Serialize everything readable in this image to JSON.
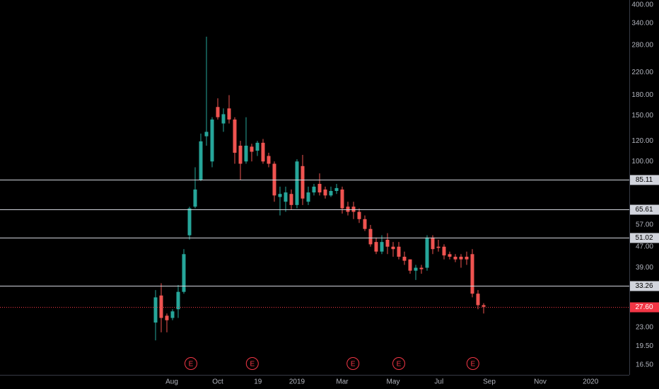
{
  "chart_data": {
    "type": "candlestick",
    "log_scale": true,
    "up_color": "#26a69a",
    "down_color": "#ef5350",
    "categories": [
      null,
      null,
      null,
      null,
      null,
      null,
      null,
      null,
      null,
      null,
      null,
      null,
      null,
      null,
      null,
      null,
      null,
      null,
      null,
      null,
      null,
      null,
      null,
      null,
      null,
      null,
      null,
      null,
      null,
      null,
      null,
      null,
      null,
      null,
      null,
      null,
      null,
      null,
      null,
      null,
      null,
      null,
      null,
      null,
      null,
      null,
      null,
      null,
      null,
      null,
      null,
      null,
      null,
      null,
      null,
      null,
      null,
      null,
      null
    ],
    "open": [
      24,
      30.5,
      25.5,
      25,
      27,
      31.5,
      52,
      67,
      85,
      125,
      100,
      162,
      140,
      160,
      145,
      115,
      100,
      114,
      110,
      118,
      105,
      98,
      73,
      70,
      75,
      68,
      96,
      70,
      76,
      82,
      78,
      74,
      77,
      78,
      67,
      67,
      64,
      60,
      55,
      49,
      45,
      50,
      47,
      47,
      43,
      42,
      38,
      39,
      39,
      51,
      47,
      47,
      44,
      43,
      43,
      43,
      44,
      31,
      28
    ],
    "high": [
      32,
      34,
      26,
      27,
      33.5,
      46,
      67,
      95,
      128,
      302,
      148,
      175,
      160,
      180,
      148,
      120,
      148,
      117,
      120,
      122,
      108,
      100,
      80,
      80,
      78,
      102,
      106,
      80,
      82,
      90,
      80,
      80,
      82,
      80,
      70,
      70,
      66,
      62,
      57,
      51,
      52,
      53,
      49,
      49,
      45,
      42,
      40,
      40,
      52,
      52,
      50,
      48,
      45,
      44,
      44,
      45,
      46,
      32,
      28.5
    ],
    "low": [
      20.5,
      22,
      22,
      24.5,
      25,
      31,
      50,
      66,
      84,
      115,
      95,
      145,
      130,
      140,
      98,
      85,
      98,
      100,
      105,
      98,
      95,
      70,
      62,
      64,
      65,
      66,
      68,
      68,
      74,
      74,
      72,
      73,
      75,
      63,
      62,
      60,
      58,
      54,
      47,
      44,
      44,
      44,
      43,
      42,
      40,
      37,
      35,
      37,
      38,
      44,
      45,
      42,
      42,
      41,
      39,
      40,
      30,
      27,
      26
    ],
    "close": [
      30,
      25,
      24.5,
      26.5,
      31.5,
      44,
      66,
      78,
      119.5,
      130,
      145,
      148,
      152,
      145,
      108,
      98,
      115,
      109,
      118,
      100,
      98,
      74,
      75,
      76,
      68,
      100,
      72,
      76,
      80,
      76,
      74,
      77,
      79,
      66,
      64,
      64,
      60,
      55,
      48,
      45,
      49,
      47,
      46,
      43,
      41.5,
      38,
      39,
      38.5,
      51,
      46,
      46.5,
      43.5,
      43,
      42,
      42,
      42,
      31,
      28,
      27.6
    ],
    "ylim": [
      15.1,
      418
    ],
    "yticks": [
      {
        "value": 400,
        "label": "400.00"
      },
      {
        "value": 340,
        "label": "340.00"
      },
      {
        "value": 280,
        "label": "280.00"
      },
      {
        "value": 220,
        "label": "220.00"
      },
      {
        "value": 180,
        "label": "180.00"
      },
      {
        "value": 150,
        "label": "150.00"
      },
      {
        "value": 120,
        "label": "120.00"
      },
      {
        "value": 100,
        "label": "100.00"
      },
      {
        "value": 57,
        "label": "57.00"
      },
      {
        "value": 47,
        "label": "47.00"
      },
      {
        "value": 39,
        "label": "39.00"
      },
      {
        "value": 23,
        "label": "23.00"
      },
      {
        "value": 19.5,
        "label": "19.50"
      },
      {
        "value": 16.5,
        "label": "16.50"
      }
    ],
    "xlim": [
      -27.5,
      83.75
    ],
    "xticks": [
      {
        "value": 2.875,
        "label": "Aug"
      },
      {
        "value": 11,
        "label": "Oct"
      },
      {
        "value": 18.1,
        "label": "19"
      },
      {
        "value": 25,
        "label": "2019"
      },
      {
        "value": 33,
        "label": "Mar"
      },
      {
        "value": 42,
        "label": "May"
      },
      {
        "value": 50.1,
        "label": "Jul"
      },
      {
        "value": 59,
        "label": "Sep"
      },
      {
        "value": 68,
        "label": "Nov"
      },
      {
        "value": 76.9,
        "label": "2020"
      }
    ],
    "levels": [
      85.11,
      65.61,
      51.02,
      33.26
    ],
    "level_color": "#d1d4dc",
    "last_price": {
      "value": 27.6,
      "label": "27.60"
    },
    "last_price_color": "#f23645",
    "events": [
      {
        "x": 6.25,
        "label": "E"
      },
      {
        "x": 17.1,
        "label": "E"
      },
      {
        "x": 34.9,
        "label": "E"
      },
      {
        "x": 43,
        "label": "E"
      },
      {
        "x": 56.1,
        "label": "E"
      }
    ],
    "event_color": "#f23645"
  }
}
